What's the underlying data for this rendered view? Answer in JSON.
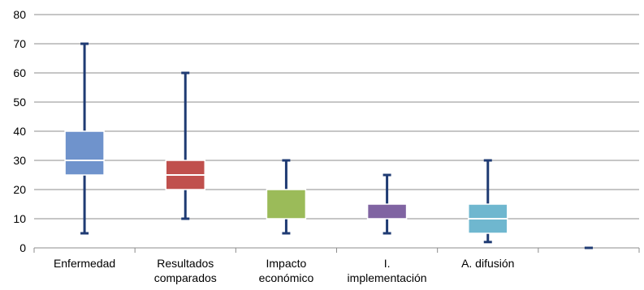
{
  "chart_data": {
    "type": "box",
    "categories": [
      [
        "Enfermedad"
      ],
      [
        "Resultados",
        "comparados"
      ],
      [
        "Impacto",
        "económico"
      ],
      [
        "I.",
        "implementación"
      ],
      [
        "A. difusión"
      ],
      []
    ],
    "series": [
      {
        "min": 5,
        "q1": 25,
        "median": 30,
        "q3": 40,
        "max": 70,
        "color": "#6f93cc"
      },
      {
        "min": 10,
        "q1": 20,
        "median": 25,
        "q3": 30,
        "max": 60,
        "color": "#c0504d"
      },
      {
        "min": 5,
        "q1": 10,
        "median": 20,
        "q3": 20,
        "max": 30,
        "color": "#9bbb59"
      },
      {
        "min": 5,
        "q1": 10,
        "median": 10,
        "q3": 15,
        "max": 25,
        "color": "#8064a2"
      },
      {
        "min": 2,
        "q1": 5,
        "median": 10,
        "q3": 15,
        "max": 30,
        "color": "#6fb7cf"
      },
      {
        "min": 0,
        "q1": 0,
        "median": 0,
        "q3": 0,
        "max": 0,
        "color": "#1f3b73"
      }
    ],
    "whisker_color": "#1f3b73",
    "yticks": [
      0,
      10,
      20,
      30,
      40,
      50,
      60,
      70,
      80
    ],
    "ylim": [
      0,
      80
    ],
    "grid": true,
    "legend": "none",
    "title": "",
    "xlabel": "",
    "ylabel": ""
  }
}
